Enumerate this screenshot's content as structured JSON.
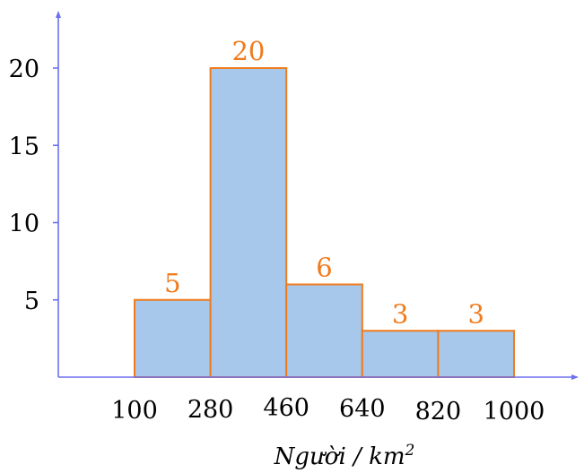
{
  "chart_data": {
    "type": "bar",
    "histogram": true,
    "bin_edges": [
      100,
      280,
      460,
      640,
      820,
      1000
    ],
    "values": [
      5,
      20,
      6,
      3,
      3
    ],
    "data_labels": [
      "5",
      "20",
      "6",
      "3",
      "3"
    ],
    "x_tick_labels": [
      "100",
      "280",
      "460",
      "640",
      "820",
      "1000"
    ],
    "y_ticks": [
      5,
      10,
      15,
      20
    ],
    "ylim": [
      0,
      23
    ],
    "title": "",
    "xlabel_main": "Người / km",
    "xlabel_sup": "2",
    "ylabel": "",
    "grid": false,
    "legend": "none",
    "colors": {
      "bar_fill": "#a7c8eb",
      "bar_stroke": "#f07b1d",
      "axis": "#6b6ff0",
      "data_label": "#f07b1d",
      "text": "#000000"
    }
  }
}
